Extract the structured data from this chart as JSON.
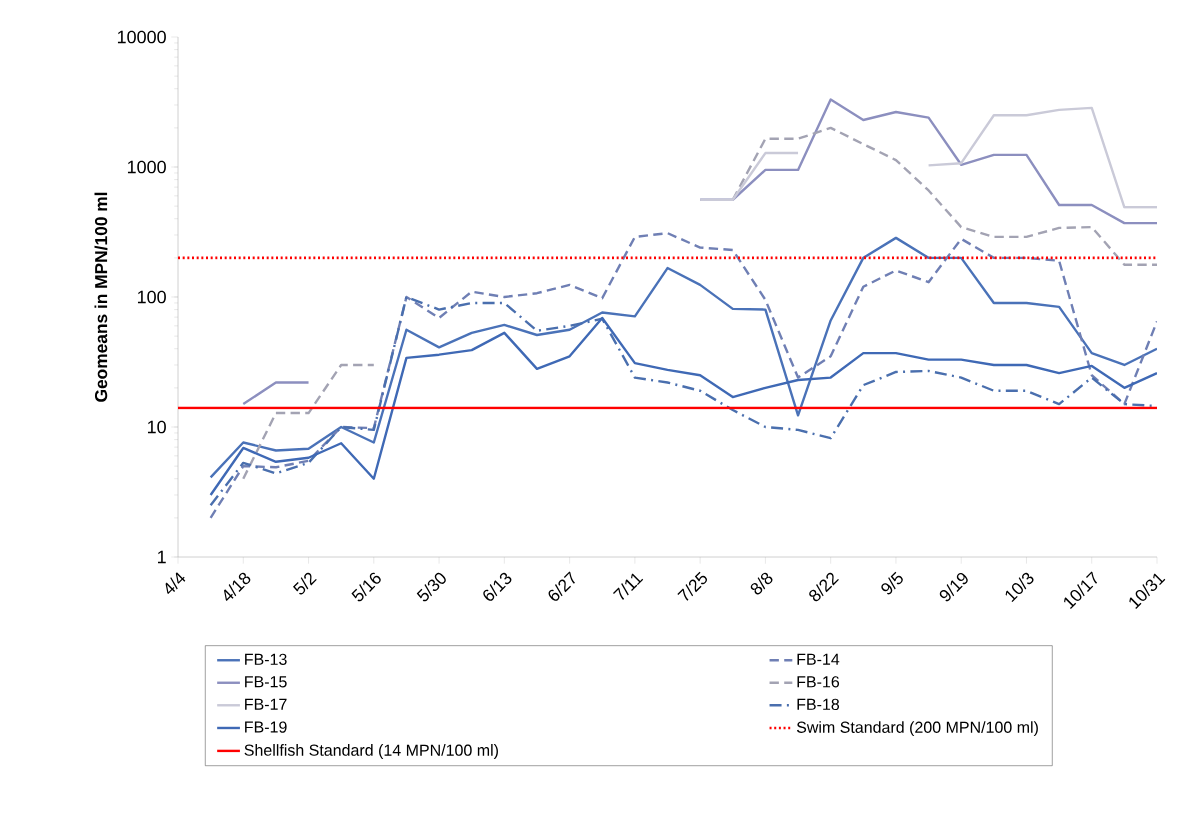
{
  "chart_data": {
    "type": "line",
    "ylabel": "Geomeans in MPN/100 ml",
    "categories": [
      "4/4",
      null,
      "4/18",
      null,
      "5/2",
      null,
      "5/16",
      null,
      "5/30",
      null,
      "6/13",
      null,
      "6/27",
      null,
      "7/11",
      null,
      "7/25",
      null,
      "8/8",
      null,
      "8/22",
      null,
      "9/5",
      null,
      "9/19",
      null,
      "10/3",
      null,
      "10/17",
      null,
      "10/31"
    ],
    "log": "y",
    "ylim": [
      1,
      10000
    ],
    "yticks": [
      1,
      10,
      100,
      1000,
      10000
    ],
    "legend": "bottom",
    "marker": "none",
    "series": [
      {
        "name": "FB-13",
        "color": "#4a72b8",
        "line_style": "solid",
        "values": [
          null,
          4.1,
          7.6,
          6.6,
          6.8,
          10,
          7.6,
          56,
          41,
          53,
          61,
          51,
          56,
          76,
          71,
          167,
          124,
          81,
          80,
          12.3,
          66,
          200,
          285,
          200,
          200,
          90,
          90,
          84,
          37,
          30,
          40
        ]
      },
      {
        "name": "FB-14",
        "color": "#6f7fb4",
        "line_style": "dashed",
        "values": [
          null,
          2,
          5,
          4.9,
          5.5,
          10,
          9.8,
          100,
          69,
          110,
          100,
          107,
          124,
          98,
          290,
          310,
          240,
          230,
          95,
          24,
          35,
          120,
          160,
          130,
          280,
          200,
          200,
          190,
          25,
          15,
          65
        ]
      },
      {
        "name": "FB-15",
        "color": "#8c8fbf",
        "line_style": "solid",
        "values": [
          null,
          null,
          15,
          22,
          22,
          null,
          null,
          null,
          null,
          null,
          null,
          null,
          null,
          null,
          null,
          null,
          560,
          560,
          950,
          950,
          3300,
          2300,
          2650,
          2400,
          1040,
          1240,
          1240,
          510,
          510,
          370,
          370
        ]
      },
      {
        "name": "FB-16",
        "color": "#a3a3b3",
        "line_style": "dashed",
        "values": [
          null,
          null,
          4,
          12.8,
          12.8,
          30,
          30,
          null,
          null,
          null,
          null,
          null,
          null,
          null,
          null,
          null,
          null,
          560,
          1650,
          1650,
          2000,
          1500,
          1130,
          660,
          345,
          290,
          290,
          340,
          345,
          177,
          177
        ]
      },
      {
        "name": "FB-17",
        "color": "#cacad8",
        "line_style": "solid",
        "values": [
          null,
          null,
          null,
          null,
          null,
          null,
          null,
          null,
          null,
          null,
          null,
          null,
          null,
          null,
          null,
          null,
          560,
          560,
          1280,
          1280,
          null,
          null,
          null,
          1030,
          1070,
          2500,
          2500,
          2750,
          2850,
          490,
          490
        ]
      },
      {
        "name": "FB-18",
        "color": "#4a6fae",
        "line_style": "dashdot",
        "values": [
          null,
          2.5,
          5.3,
          4.4,
          5.3,
          10,
          9.5,
          100,
          80,
          90,
          90,
          55,
          60,
          68,
          24,
          22,
          19,
          13.5,
          10,
          9.5,
          8.2,
          21,
          26.5,
          27,
          24,
          19,
          19,
          15,
          24,
          15,
          14.5
        ]
      },
      {
        "name": "FB-19",
        "color": "#3f69b5",
        "line_style": "solid",
        "values": [
          null,
          3,
          6.9,
          5.4,
          5.8,
          7.5,
          4,
          34,
          36,
          39,
          53,
          28,
          35,
          69,
          31,
          27.5,
          25,
          17,
          20,
          23,
          24,
          37,
          37,
          33,
          33,
          30,
          30,
          26,
          29.5,
          20,
          26
        ]
      }
    ],
    "ref_lines": [
      {
        "axis": "y",
        "value": 200,
        "label": "Swim Standard (200 MPN/100 ml)",
        "color": "#ff0000",
        "line_style": "dotted"
      },
      {
        "axis": "y",
        "value": 14,
        "label": "Shellfish Standard (14 MPN/100 ml)",
        "color": "#ff0000",
        "line_style": "solid"
      }
    ]
  }
}
